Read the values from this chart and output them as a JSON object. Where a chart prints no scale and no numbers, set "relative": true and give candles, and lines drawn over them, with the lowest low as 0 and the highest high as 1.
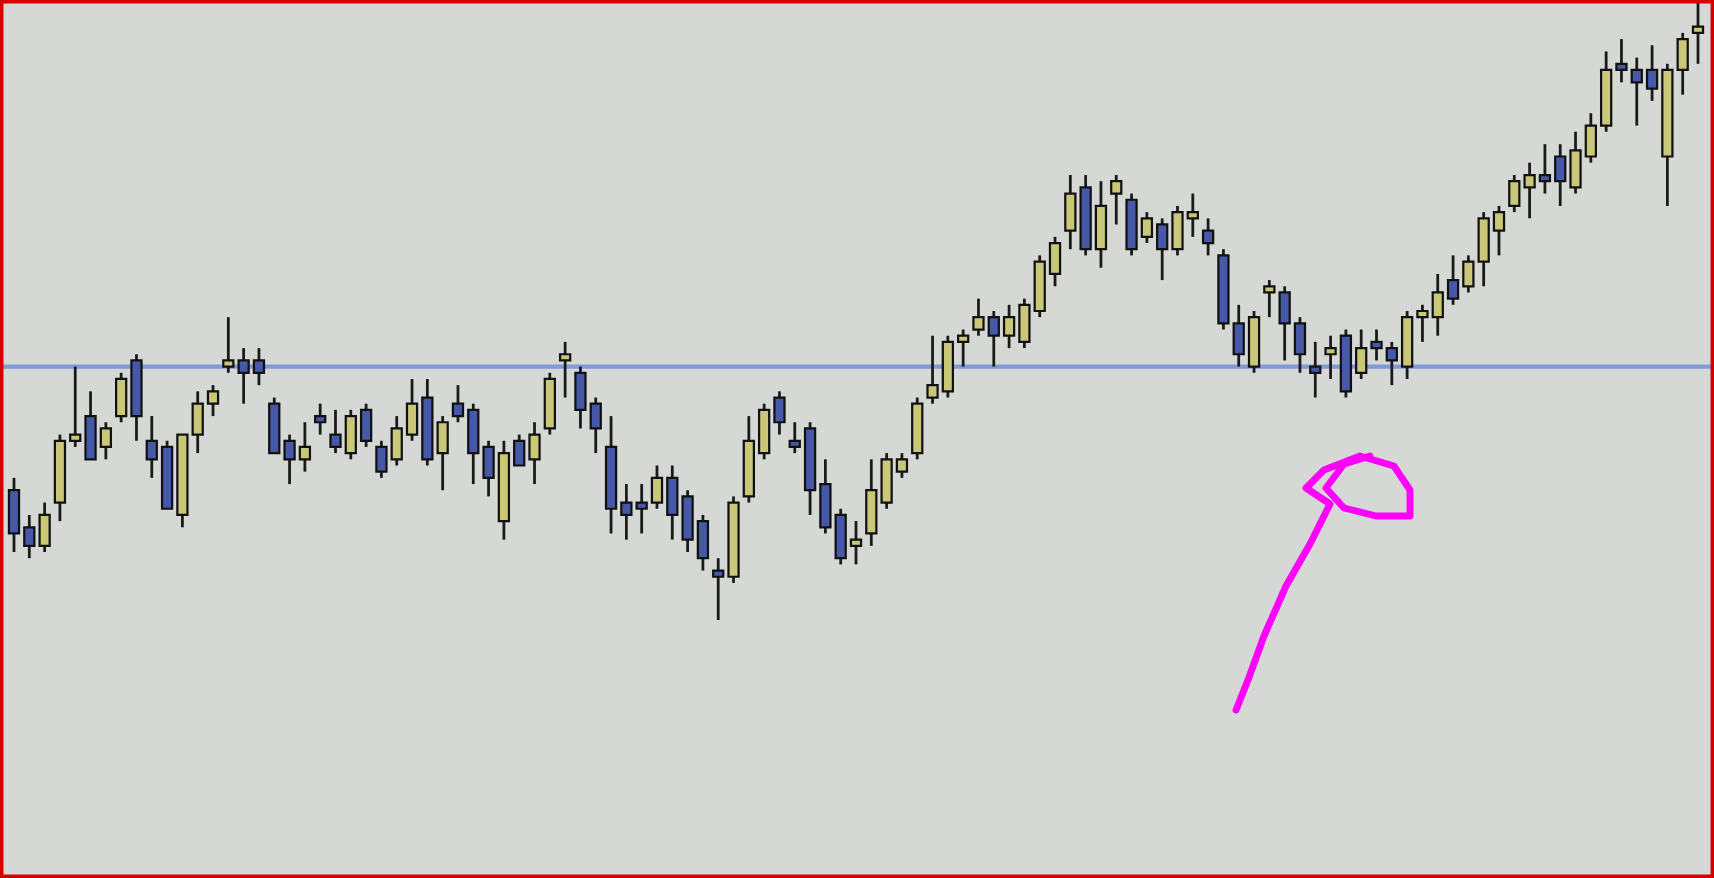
{
  "chart_data": {
    "type": "candlestick",
    "relative": true,
    "categories": [
      null,
      null,
      null,
      null,
      null,
      null,
      null,
      null,
      null,
      null,
      null,
      null,
      null,
      null,
      null,
      null,
      null,
      null,
      null,
      null,
      null,
      null,
      null,
      null,
      null,
      null,
      null,
      null,
      null,
      null,
      null,
      null,
      null,
      null,
      null,
      null,
      null,
      null,
      null,
      null,
      null,
      null,
      null,
      null,
      null,
      null,
      null,
      null,
      null,
      null,
      null,
      null,
      null,
      null,
      null,
      null,
      null,
      null,
      null,
      null,
      null,
      null,
      null,
      null,
      null,
      null,
      null,
      null,
      null,
      null,
      null,
      null,
      null,
      null,
      null,
      null,
      null,
      null,
      null,
      null,
      null,
      null,
      null,
      null,
      null,
      null,
      null,
      null,
      null,
      null,
      null,
      null,
      null,
      null,
      null,
      null,
      null,
      null,
      null,
      null,
      null,
      null,
      null,
      null,
      null,
      null,
      null,
      null,
      null,
      null,
      null
    ],
    "ohlc": [
      [
        0.21,
        0.23,
        0.11,
        0.14
      ],
      [
        0.15,
        0.17,
        0.1,
        0.12
      ],
      [
        0.12,
        0.19,
        0.11,
        0.17
      ],
      [
        0.19,
        0.3,
        0.16,
        0.29
      ],
      [
        0.29,
        0.41,
        0.28,
        0.3
      ],
      [
        0.33,
        0.37,
        0.26,
        0.26
      ],
      [
        0.28,
        0.32,
        0.26,
        0.31
      ],
      [
        0.33,
        0.4,
        0.32,
        0.39
      ],
      [
        0.42,
        0.43,
        0.29,
        0.33
      ],
      [
        0.29,
        0.33,
        0.23,
        0.26
      ],
      [
        0.28,
        0.29,
        0.18,
        0.18
      ],
      [
        0.17,
        0.3,
        0.15,
        0.3
      ],
      [
        0.3,
        0.37,
        0.27,
        0.35
      ],
      [
        0.35,
        0.38,
        0.33,
        0.37
      ],
      [
        0.41,
        0.49,
        0.4,
        0.42
      ],
      [
        0.42,
        0.44,
        0.35,
        0.4
      ],
      [
        0.42,
        0.44,
        0.38,
        0.4
      ],
      [
        0.35,
        0.36,
        0.27,
        0.27
      ],
      [
        0.29,
        0.3,
        0.22,
        0.26
      ],
      [
        0.26,
        0.32,
        0.24,
        0.28
      ],
      [
        0.33,
        0.35,
        0.3,
        0.32
      ],
      [
        0.3,
        0.34,
        0.27,
        0.28
      ],
      [
        0.27,
        0.34,
        0.26,
        0.33
      ],
      [
        0.34,
        0.35,
        0.28,
        0.29
      ],
      [
        0.28,
        0.29,
        0.23,
        0.24
      ],
      [
        0.26,
        0.33,
        0.25,
        0.31
      ],
      [
        0.3,
        0.39,
        0.29,
        0.35
      ],
      [
        0.36,
        0.39,
        0.25,
        0.26
      ],
      [
        0.27,
        0.33,
        0.21,
        0.32
      ],
      [
        0.35,
        0.38,
        0.32,
        0.33
      ],
      [
        0.34,
        0.35,
        0.22,
        0.27
      ],
      [
        0.28,
        0.29,
        0.2,
        0.23
      ],
      [
        0.16,
        0.29,
        0.13,
        0.27
      ],
      [
        0.29,
        0.3,
        0.25,
        0.25
      ],
      [
        0.26,
        0.32,
        0.22,
        0.3
      ],
      [
        0.31,
        0.4,
        0.3,
        0.39
      ],
      [
        0.42,
        0.45,
        0.36,
        0.43
      ],
      [
        0.4,
        0.41,
        0.31,
        0.34
      ],
      [
        0.35,
        0.36,
        0.27,
        0.31
      ],
      [
        0.28,
        0.33,
        0.14,
        0.18
      ],
      [
        0.19,
        0.22,
        0.13,
        0.17
      ],
      [
        0.19,
        0.22,
        0.14,
        0.18
      ],
      [
        0.19,
        0.25,
        0.18,
        0.23
      ],
      [
        0.23,
        0.25,
        0.13,
        0.17
      ],
      [
        0.2,
        0.21,
        0.11,
        0.13
      ],
      [
        0.16,
        0.17,
        0.08,
        0.1
      ],
      [
        0.08,
        0.1,
        0.0,
        0.07
      ],
      [
        0.07,
        0.2,
        0.06,
        0.19
      ],
      [
        0.2,
        0.33,
        0.19,
        0.29
      ],
      [
        0.27,
        0.35,
        0.26,
        0.34
      ],
      [
        0.36,
        0.37,
        0.3,
        0.32
      ],
      [
        0.29,
        0.32,
        0.27,
        0.28
      ],
      [
        0.31,
        0.32,
        0.17,
        0.21
      ],
      [
        0.22,
        0.26,
        0.14,
        0.15
      ],
      [
        0.17,
        0.18,
        0.09,
        0.1
      ],
      [
        0.12,
        0.16,
        0.09,
        0.13
      ],
      [
        0.14,
        0.26,
        0.12,
        0.21
      ],
      [
        0.19,
        0.27,
        0.18,
        0.26
      ],
      [
        0.24,
        0.27,
        0.23,
        0.26
      ],
      [
        0.27,
        0.36,
        0.26,
        0.35
      ],
      [
        0.36,
        0.46,
        0.35,
        0.38
      ],
      [
        0.37,
        0.46,
        0.36,
        0.45
      ],
      [
        0.45,
        0.47,
        0.41,
        0.46
      ],
      [
        0.47,
        0.52,
        0.46,
        0.49
      ],
      [
        0.49,
        0.5,
        0.41,
        0.46
      ],
      [
        0.46,
        0.51,
        0.44,
        0.49
      ],
      [
        0.45,
        0.52,
        0.44,
        0.51
      ],
      [
        0.5,
        0.59,
        0.49,
        0.58
      ],
      [
        0.56,
        0.62,
        0.54,
        0.61
      ],
      [
        0.63,
        0.72,
        0.6,
        0.69
      ],
      [
        0.7,
        0.72,
        0.59,
        0.6
      ],
      [
        0.6,
        0.71,
        0.57,
        0.67
      ],
      [
        0.69,
        0.72,
        0.64,
        0.71
      ],
      [
        0.68,
        0.69,
        0.59,
        0.6
      ],
      [
        0.62,
        0.66,
        0.61,
        0.65
      ],
      [
        0.64,
        0.65,
        0.55,
        0.6
      ],
      [
        0.6,
        0.67,
        0.59,
        0.66
      ],
      [
        0.65,
        0.69,
        0.62,
        0.66
      ],
      [
        0.63,
        0.65,
        0.59,
        0.61
      ],
      [
        0.59,
        0.6,
        0.47,
        0.48
      ],
      [
        0.48,
        0.51,
        0.41,
        0.43
      ],
      [
        0.41,
        0.5,
        0.4,
        0.49
      ],
      [
        0.53,
        0.55,
        0.49,
        0.54
      ],
      [
        0.53,
        0.54,
        0.42,
        0.48
      ],
      [
        0.48,
        0.49,
        0.4,
        0.43
      ],
      [
        0.41,
        0.45,
        0.36,
        0.4
      ],
      [
        0.43,
        0.46,
        0.39,
        0.44
      ],
      [
        0.46,
        0.47,
        0.36,
        0.37
      ],
      [
        0.4,
        0.47,
        0.39,
        0.44
      ],
      [
        0.45,
        0.47,
        0.42,
        0.44
      ],
      [
        0.44,
        0.45,
        0.38,
        0.42
      ],
      [
        0.41,
        0.5,
        0.39,
        0.49
      ],
      [
        0.49,
        0.51,
        0.45,
        0.5
      ],
      [
        0.49,
        0.56,
        0.46,
        0.53
      ],
      [
        0.55,
        0.59,
        0.51,
        0.52
      ],
      [
        0.54,
        0.59,
        0.53,
        0.58
      ],
      [
        0.58,
        0.66,
        0.54,
        0.65
      ],
      [
        0.63,
        0.67,
        0.59,
        0.66
      ],
      [
        0.67,
        0.72,
        0.66,
        0.71
      ],
      [
        0.7,
        0.74,
        0.65,
        0.72
      ],
      [
        0.72,
        0.77,
        0.69,
        0.71
      ],
      [
        0.75,
        0.77,
        0.67,
        0.71
      ],
      [
        0.7,
        0.79,
        0.69,
        0.76
      ],
      [
        0.75,
        0.82,
        0.74,
        0.8
      ],
      [
        0.8,
        0.92,
        0.79,
        0.89
      ],
      [
        0.9,
        0.94,
        0.87,
        0.89
      ],
      [
        0.89,
        0.91,
        0.8,
        0.87
      ],
      [
        0.89,
        0.93,
        0.84,
        0.86
      ],
      [
        0.75,
        0.9,
        0.67,
        0.89
      ],
      [
        0.89,
        0.95,
        0.85,
        0.94
      ],
      [
        0.95,
        1.0,
        0.9,
        0.96
      ]
    ],
    "colors": [
      "#4658a8",
      "#4658a8",
      "#c8c878",
      "#c8c878",
      "#c8c878",
      "#4658a8",
      "#c8c878",
      "#c8c878",
      "#4658a8",
      "#4658a8",
      "#4658a8",
      "#c8c878",
      "#c8c878",
      "#c8c878",
      "#c8c878",
      "#4658a8",
      "#4658a8",
      "#4658a8",
      "#4658a8",
      "#c8c878",
      "#4658a8",
      "#4658a8",
      "#c8c878",
      "#4658a8",
      "#4658a8",
      "#c8c878",
      "#c8c878",
      "#4658a8",
      "#c8c878",
      "#4658a8",
      "#4658a8",
      "#4658a8",
      "#c8c878",
      "#4658a8",
      "#c8c878",
      "#c8c878",
      "#c8c878",
      "#4658a8",
      "#4658a8",
      "#4658a8",
      "#4658a8",
      "#4658a8",
      "#c8c878",
      "#4658a8",
      "#4658a8",
      "#4658a8",
      "#4658a8",
      "#c8c878",
      "#c8c878",
      "#c8c878",
      "#4658a8",
      "#4658a8",
      "#4658a8",
      "#4658a8",
      "#4658a8",
      "#c8c878",
      "#c8c878",
      "#c8c878",
      "#c8c878",
      "#c8c878",
      "#c8c878",
      "#c8c878",
      "#c8c878",
      "#c8c878",
      "#4658a8",
      "#c8c878",
      "#c8c878",
      "#c8c878",
      "#c8c878",
      "#c8c878",
      "#4658a8",
      "#c8c878",
      "#c8c878",
      "#4658a8",
      "#c8c878",
      "#4658a8",
      "#c8c878",
      "#c8c878",
      "#4658a8",
      "#4658a8",
      "#4658a8",
      "#c8c878",
      "#c8c878",
      "#4658a8",
      "#4658a8",
      "#4658a8",
      "#c8c878",
      "#4658a8",
      "#c8c878",
      "#4658a8",
      "#4658a8",
      "#c8c878",
      "#c8c878",
      "#c8c878",
      "#4658a8",
      "#c8c878",
      "#c8c878",
      "#c8c878",
      "#c8c878",
      "#c8c878",
      "#4658a8",
      "#4658a8",
      "#c8c878",
      "#c8c878",
      "#c8c878",
      "#4658a8",
      "#4658a8",
      "#4658a8",
      "#c8c878",
      "#c8c878",
      "#c8c878"
    ],
    "ref_lines": [
      {
        "axis": "y",
        "value": 0.41,
        "color": "#7f99d9"
      }
    ]
  }
}
